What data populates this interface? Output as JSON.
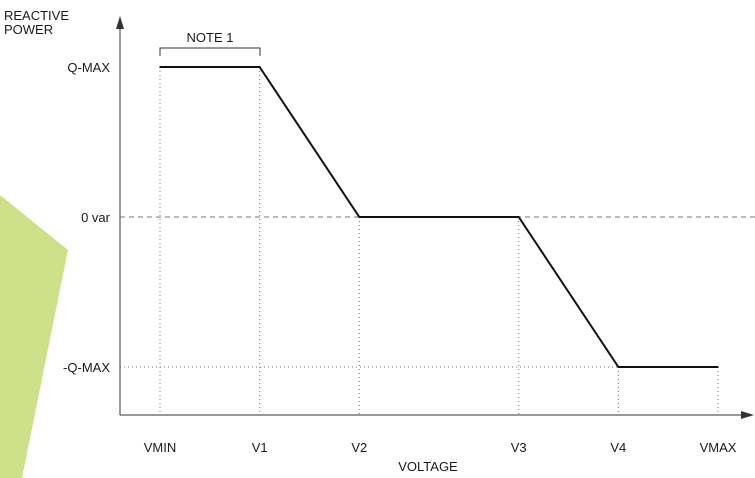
{
  "chart_data": {
    "type": "line",
    "title": "",
    "ylabel_line1": "REACTIVE",
    "ylabel_line2": "POWER",
    "xlabel": "VOLTAGE",
    "note_label": "NOTE 1",
    "x_categories": [
      "VMIN",
      "V1",
      "V2",
      "V3",
      "V4",
      "VMAX"
    ],
    "y_levels": [
      {
        "label": "Q-MAX",
        "value": 1
      },
      {
        "label": "0 var",
        "value": 0
      },
      {
        "label": "-Q-MAX",
        "value": -1
      }
    ],
    "series": [
      {
        "points": [
          {
            "x": "VMIN",
            "y": 1
          },
          {
            "x": "V1",
            "y": 1
          },
          {
            "x": "V2",
            "y": 0
          },
          {
            "x": "V3",
            "y": 0
          },
          {
            "x": "V4",
            "y": -1
          },
          {
            "x": "VMAX",
            "y": -1
          }
        ]
      }
    ],
    "x_positions": {
      "VMIN": 0,
      "V1": 1,
      "V2": 2,
      "V3": 3.6,
      "V4": 4.6,
      "VMAX": 5.6
    },
    "grid": "dashed/dotted reference lines",
    "colors": {
      "line": "#111111",
      "axis": "#333333",
      "grid": "#777777",
      "accent": "#cfe08a"
    }
  }
}
